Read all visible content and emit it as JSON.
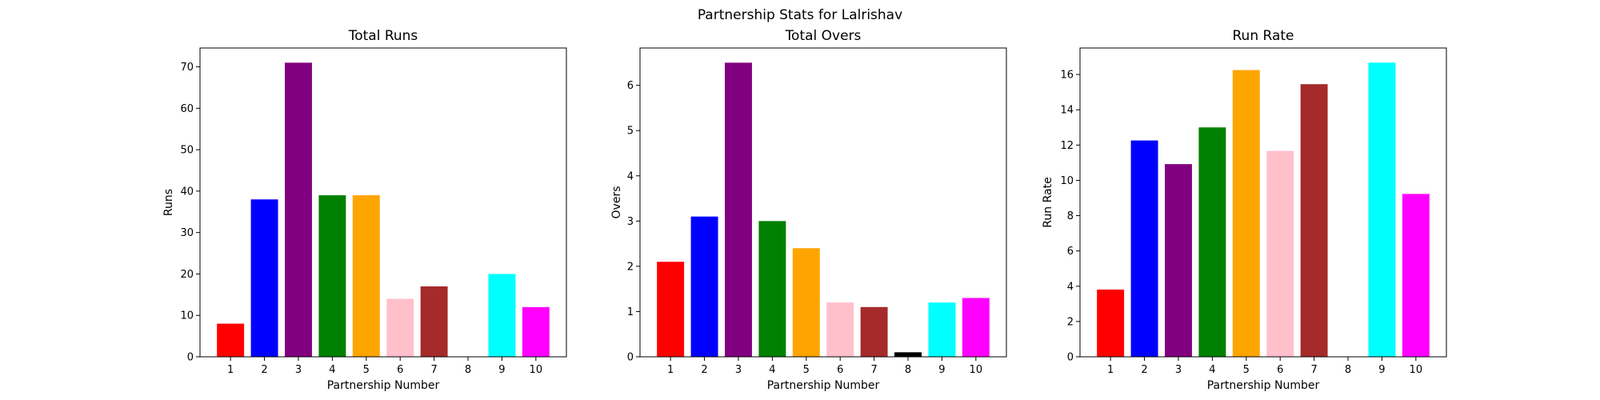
{
  "figure": {
    "suptitle": "Partnership Stats for Lalrishav"
  },
  "chart_data": [
    {
      "type": "bar",
      "title": "Total Runs",
      "xlabel": "Partnership Number",
      "ylabel": "Runs",
      "categories": [
        "1",
        "2",
        "3",
        "4",
        "5",
        "6",
        "7",
        "8",
        "9",
        "10"
      ],
      "values": [
        8,
        38,
        71,
        39,
        39,
        14,
        17,
        0,
        20,
        12
      ],
      "colors": [
        "#ff0000",
        "#0000ff",
        "#800080",
        "#008000",
        "#ffa500",
        "#ffc0cb",
        "#a52a2a",
        "#000000",
        "#00ffff",
        "#ff00ff"
      ],
      "ylim": [
        0,
        74.55
      ],
      "yticks": [
        0,
        10,
        20,
        30,
        40,
        50,
        60,
        70
      ],
      "grid": false
    },
    {
      "type": "bar",
      "title": "Total Overs",
      "xlabel": "Partnership Number",
      "ylabel": "Overs",
      "categories": [
        "1",
        "2",
        "3",
        "4",
        "5",
        "6",
        "7",
        "8",
        "9",
        "10"
      ],
      "values": [
        2.1,
        3.1,
        6.5,
        3.0,
        2.4,
        1.2,
        1.1,
        0.1,
        1.2,
        1.3
      ],
      "colors": [
        "#ff0000",
        "#0000ff",
        "#800080",
        "#008000",
        "#ffa500",
        "#ffc0cb",
        "#a52a2a",
        "#000000",
        "#00ffff",
        "#ff00ff"
      ],
      "ylim": [
        0,
        6.825
      ],
      "yticks": [
        0,
        1,
        2,
        3,
        4,
        5,
        6
      ],
      "grid": false
    },
    {
      "type": "bar",
      "title": "Run Rate",
      "xlabel": "Partnership Number",
      "ylabel": "Run Rate",
      "categories": [
        "1",
        "2",
        "3",
        "4",
        "5",
        "6",
        "7",
        "8",
        "9",
        "10"
      ],
      "values": [
        3.81,
        12.26,
        10.92,
        13.0,
        16.25,
        11.67,
        15.45,
        0,
        16.67,
        9.23
      ],
      "colors": [
        "#ff0000",
        "#0000ff",
        "#800080",
        "#008000",
        "#ffa500",
        "#ffc0cb",
        "#a52a2a",
        "#000000",
        "#00ffff",
        "#ff00ff"
      ],
      "ylim": [
        0,
        17.5
      ],
      "yticks": [
        0,
        2,
        4,
        6,
        8,
        10,
        12,
        14,
        16
      ],
      "grid": false
    }
  ]
}
